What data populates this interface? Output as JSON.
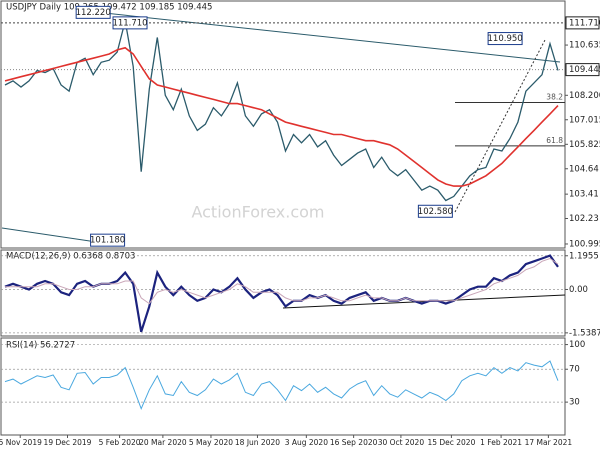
{
  "chart_data": [
    {
      "type": "line",
      "title": "USDJPY Daily  109.265 109.472 109.185 109.445",
      "watermark": "ActionForex.com",
      "xlim": [
        0,
        69
      ],
      "ylim": [
        100.8,
        112.77
      ],
      "yticks": [
        100.995,
        102.23,
        103.41,
        104.64,
        105.825,
        107.015,
        {
          "value": 108.2,
          "label": "108.200"
        },
        110.635
      ],
      "resistance": {
        "value": 111.71,
        "label": "111.710"
      },
      "last_price": 109.445,
      "series": [
        {
          "name": "USDJPY",
          "color": "#2b5b6b",
          "values": [
            108.7,
            108.9,
            108.6,
            108.9,
            109.4,
            109.3,
            109.5,
            108.7,
            108.4,
            109.8,
            110.0,
            109.2,
            109.8,
            109.9,
            110.3,
            111.8,
            109.6,
            104.5,
            108.5,
            111.0,
            108.2,
            107.5,
            108.5,
            107.2,
            106.5,
            106.8,
            107.6,
            107.2,
            107.8,
            108.8,
            107.2,
            106.7,
            107.3,
            107.5,
            106.9,
            105.5,
            106.3,
            105.9,
            106.3,
            105.7,
            106.0,
            105.3,
            104.8,
            105.1,
            105.4,
            105.6,
            104.7,
            105.2,
            104.6,
            104.3,
            104.6,
            104.1,
            103.6,
            103.8,
            103.6,
            103.1,
            103.3,
            103.8,
            104.3,
            104.6,
            104.7,
            105.6,
            105.5,
            106.1,
            106.9,
            108.4,
            108.8,
            109.2,
            110.7,
            109.4
          ]
        },
        {
          "name": "SMA",
          "color": "#e0322e",
          "values": [
            108.9,
            109.0,
            109.1,
            109.2,
            109.3,
            109.4,
            109.5,
            109.6,
            109.7,
            109.8,
            109.9,
            110.0,
            110.1,
            110.2,
            110.4,
            110.5,
            110.2,
            109.6,
            109.0,
            108.7,
            108.6,
            108.5,
            108.4,
            108.3,
            108.2,
            108.1,
            108.0,
            107.9,
            107.8,
            107.8,
            107.7,
            107.6,
            107.5,
            107.3,
            107.1,
            106.9,
            106.8,
            106.7,
            106.6,
            106.5,
            106.4,
            106.3,
            106.3,
            106.2,
            106.1,
            106.0,
            106.0,
            105.9,
            105.8,
            105.6,
            105.3,
            105.0,
            104.7,
            104.4,
            104.1,
            103.9,
            103.8,
            103.8,
            103.9,
            104.1,
            104.3,
            104.6,
            104.9,
            105.3,
            105.7,
            106.1,
            106.5,
            106.9,
            107.3,
            107.7
          ]
        }
      ],
      "annotations": [
        {
          "label": "112.220",
          "value": 112.22,
          "x": 11
        },
        {
          "label": "111.710",
          "value": 111.71,
          "x": 15.6
        },
        {
          "label": "101.180",
          "value": 101.18,
          "x": 12.8
        },
        {
          "label": "110.950",
          "value": 110.95,
          "x": 62.4
        },
        {
          "label": "102.580",
          "value": 102.58,
          "x": 53.7
        }
      ],
      "fib_levels": [
        {
          "ratio": 38.2,
          "price": 107.85
        },
        {
          "ratio": 61.8,
          "price": 105.75
        }
      ]
    },
    {
      "type": "line",
      "title": "MACD(12,26,9) 0.6368 0.8703",
      "xlim": [
        0,
        69
      ],
      "ylim": [
        -1.65,
        1.4
      ],
      "yticks": [
        1.1955,
        {
          "value": 0,
          "label": "0.00"
        },
        -1.5387
      ],
      "series": [
        {
          "name": "MACD",
          "color": "#1c237e",
          "values": [
            0.1,
            0.2,
            0.1,
            0.0,
            0.2,
            0.3,
            0.2,
            -0.1,
            -0.2,
            0.2,
            0.3,
            0.1,
            0.2,
            0.2,
            0.3,
            0.6,
            0.2,
            -1.5,
            -0.6,
            0.6,
            0.1,
            -0.2,
            0.1,
            -0.2,
            -0.4,
            -0.3,
            0.0,
            -0.1,
            0.1,
            0.4,
            0.0,
            -0.3,
            -0.1,
            0.0,
            -0.2,
            -0.6,
            -0.4,
            -0.4,
            -0.2,
            -0.3,
            -0.2,
            -0.4,
            -0.5,
            -0.3,
            -0.2,
            -0.1,
            -0.4,
            -0.3,
            -0.4,
            -0.4,
            -0.3,
            -0.4,
            -0.5,
            -0.4,
            -0.4,
            -0.5,
            -0.4,
            -0.2,
            0.0,
            0.1,
            0.1,
            0.4,
            0.3,
            0.5,
            0.6,
            0.9,
            1.0,
            1.1,
            1.2,
            0.8
          ]
        },
        {
          "name": "Signal",
          "color": "#c9a6b8",
          "values": [
            0.1,
            0.1,
            0.1,
            0.1,
            0.1,
            0.2,
            0.2,
            0.1,
            0.0,
            0.0,
            0.1,
            0.1,
            0.2,
            0.2,
            0.2,
            0.3,
            0.3,
            -0.3,
            -0.5,
            -0.1,
            0.0,
            -0.1,
            0.0,
            -0.1,
            -0.2,
            -0.3,
            -0.2,
            -0.1,
            0.0,
            0.2,
            0.1,
            -0.1,
            -0.1,
            -0.1,
            -0.1,
            -0.3,
            -0.4,
            -0.4,
            -0.3,
            -0.3,
            -0.2,
            -0.3,
            -0.4,
            -0.4,
            -0.3,
            -0.2,
            -0.3,
            -0.3,
            -0.4,
            -0.4,
            -0.3,
            -0.4,
            -0.4,
            -0.4,
            -0.4,
            -0.4,
            -0.4,
            -0.3,
            -0.2,
            -0.1,
            0.0,
            0.2,
            0.3,
            0.4,
            0.5,
            0.7,
            0.8,
            1.0,
            1.1,
            0.9
          ]
        }
      ]
    },
    {
      "type": "line",
      "title": "RSI(14) 56.2727",
      "xlim": [
        0,
        69
      ],
      "ylim": [
        -10,
        108
      ],
      "yticks": [
        100,
        70,
        30
      ],
      "xticks": [
        {
          "value": 1.9,
          "label": "5 Nov 2019"
        },
        {
          "value": 7.8,
          "label": "19 Dec 2019"
        },
        {
          "value": 14.3,
          "label": "5 Feb 2020"
        },
        {
          "value": 19.7,
          "label": "20 Mar 2020"
        },
        {
          "value": 25.7,
          "label": "5 May 2020"
        },
        {
          "value": 31.5,
          "label": "18 Jun 2020"
        },
        {
          "value": 37.6,
          "label": "3 Aug 2020"
        },
        {
          "value": 43.5,
          "label": "16 Sep 2020"
        },
        {
          "value": 49.4,
          "label": "30 Oct 2020"
        },
        {
          "value": 55.7,
          "label": "15 Dec 2020"
        },
        {
          "value": 61.9,
          "label": "1 Feb 2021"
        },
        {
          "value": 67.8,
          "label": "17 Mar 2021"
        }
      ],
      "series": [
        {
          "name": "RSI",
          "color": "#4aa8df",
          "values": [
            55,
            58,
            52,
            57,
            62,
            60,
            63,
            48,
            45,
            65,
            66,
            52,
            60,
            60,
            63,
            72,
            48,
            22,
            45,
            62,
            40,
            38,
            55,
            42,
            38,
            45,
            58,
            52,
            57,
            65,
            42,
            38,
            52,
            55,
            45,
            32,
            50,
            44,
            52,
            42,
            48,
            40,
            35,
            46,
            52,
            56,
            38,
            50,
            40,
            36,
            45,
            40,
            35,
            42,
            38,
            32,
            40,
            56,
            62,
            65,
            62,
            72,
            65,
            72,
            68,
            78,
            75,
            73,
            80,
            56
          ]
        }
      ]
    }
  ]
}
